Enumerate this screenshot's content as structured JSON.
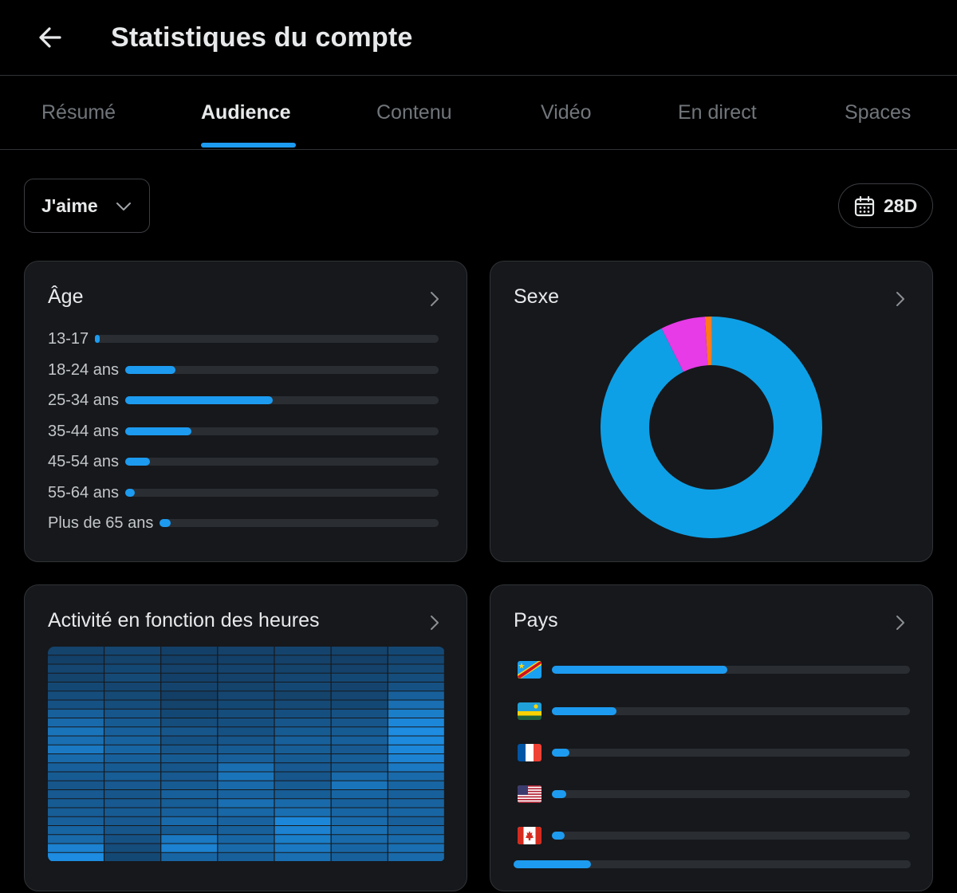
{
  "header": {
    "title": "Statistiques du compte",
    "back_icon": "arrow-left-icon"
  },
  "tabs": [
    {
      "label": "Résumé",
      "active": false
    },
    {
      "label": "Audience",
      "active": true
    },
    {
      "label": "Contenu",
      "active": false
    },
    {
      "label": "Vidéo",
      "active": false
    },
    {
      "label": "En direct",
      "active": false
    },
    {
      "label": "Spaces",
      "active": false
    }
  ],
  "controls": {
    "metric_select": "J'aime",
    "period": "28D"
  },
  "accent_color": "#1d9bf0",
  "age": {
    "title": "Âge",
    "groups": [
      {
        "label": "13-17",
        "value": 0.01
      },
      {
        "label": "18-24 ans",
        "value": 0.16
      },
      {
        "label": "25-34 ans",
        "value": 0.47
      },
      {
        "label": "35-44 ans",
        "value": 0.21
      },
      {
        "label": "45-54 ans",
        "value": 0.08
      },
      {
        "label": "55-64 ans",
        "value": 0.03
      },
      {
        "label": "Plus de 65 ans",
        "value": 0.04
      }
    ]
  },
  "sexe": {
    "title": "Sexe",
    "chart_data": {
      "type": "pie",
      "slices": [
        {
          "value": 0.925,
          "color": "#0ea0e6"
        },
        {
          "value": 0.065,
          "color": "#e63be6"
        },
        {
          "value": 0.01,
          "color": "#ff7a1a"
        }
      ]
    }
  },
  "activite": {
    "title": "Activité en fonction des heures",
    "chart_data": {
      "type": "heatmap",
      "columns": 7,
      "rows": 24,
      "values": [
        [
          0.15,
          0.18,
          0.12,
          0.14,
          0.16,
          0.15,
          0.2
        ],
        [
          0.12,
          0.15,
          0.1,
          0.12,
          0.14,
          0.13,
          0.18
        ],
        [
          0.18,
          0.2,
          0.14,
          0.16,
          0.15,
          0.14,
          0.22
        ],
        [
          0.15,
          0.22,
          0.12,
          0.14,
          0.18,
          0.2,
          0.25
        ],
        [
          0.2,
          0.18,
          0.16,
          0.15,
          0.2,
          0.16,
          0.3
        ],
        [
          0.25,
          0.22,
          0.1,
          0.18,
          0.15,
          0.18,
          0.45
        ],
        [
          0.3,
          0.25,
          0.15,
          0.2,
          0.22,
          0.2,
          0.6
        ],
        [
          0.45,
          0.35,
          0.2,
          0.25,
          0.28,
          0.3,
          0.75
        ],
        [
          0.55,
          0.4,
          0.25,
          0.28,
          0.35,
          0.35,
          0.85
        ],
        [
          0.65,
          0.45,
          0.35,
          0.3,
          0.4,
          0.4,
          0.9
        ],
        [
          0.6,
          0.48,
          0.3,
          0.35,
          0.45,
          0.45,
          0.88
        ],
        [
          0.7,
          0.5,
          0.35,
          0.4,
          0.42,
          0.38,
          0.85
        ],
        [
          0.55,
          0.45,
          0.4,
          0.45,
          0.4,
          0.42,
          0.8
        ],
        [
          0.45,
          0.4,
          0.35,
          0.6,
          0.38,
          0.4,
          0.7
        ],
        [
          0.4,
          0.42,
          0.38,
          0.65,
          0.35,
          0.55,
          0.55
        ],
        [
          0.35,
          0.38,
          0.4,
          0.55,
          0.4,
          0.65,
          0.5
        ],
        [
          0.38,
          0.35,
          0.45,
          0.48,
          0.42,
          0.5,
          0.45
        ],
        [
          0.4,
          0.38,
          0.42,
          0.6,
          0.55,
          0.45,
          0.48
        ],
        [
          0.42,
          0.4,
          0.45,
          0.52,
          0.6,
          0.5,
          0.5
        ],
        [
          0.45,
          0.38,
          0.55,
          0.48,
          0.85,
          0.55,
          0.45
        ],
        [
          0.5,
          0.35,
          0.4,
          0.45,
          0.8,
          0.6,
          0.5
        ],
        [
          0.55,
          0.3,
          0.7,
          0.5,
          0.75,
          0.55,
          0.55
        ],
        [
          0.8,
          0.25,
          0.8,
          0.55,
          0.7,
          0.5,
          0.6
        ],
        [
          0.9,
          0.2,
          0.5,
          0.45,
          0.6,
          0.45,
          0.55
        ]
      ]
    }
  },
  "pays": {
    "title": "Pays",
    "countries": [
      {
        "flag": "flag-cd-icon",
        "value": 0.49
      },
      {
        "flag": "flag-rw-icon",
        "value": 0.18
      },
      {
        "flag": "flag-fr-icon",
        "value": 0.05
      },
      {
        "flag": "flag-us-icon",
        "value": 0.04
      },
      {
        "flag": "flag-ca-icon",
        "value": 0.035
      }
    ],
    "other_value": 0.195
  }
}
